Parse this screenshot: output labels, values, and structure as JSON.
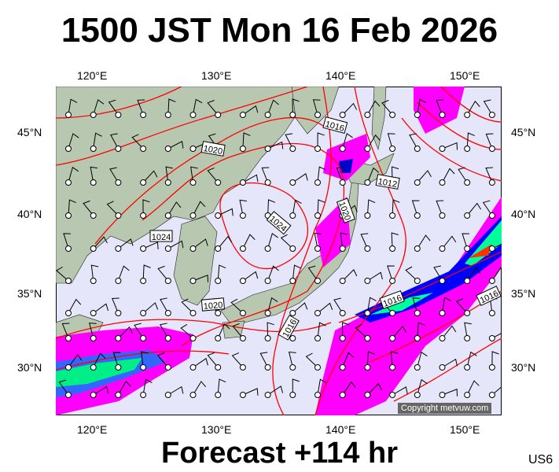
{
  "title": "1500 JST Mon 16 Feb 2026",
  "subtitle": "Forecast +114 hr",
  "region_code": "US6",
  "copyright": "Copyright metvuw.com",
  "axes": {
    "lon_labels": [
      "120°E",
      "130°E",
      "140°E",
      "150°E"
    ],
    "lat_labels": [
      "45°N",
      "40°N",
      "35°N",
      "30°N"
    ]
  },
  "isobar_labels": [
    "1016",
    "1020",
    "1012",
    "1020",
    "1024",
    "1024",
    "1020",
    "1016",
    "1016",
    "1016"
  ],
  "colors": {
    "ocean": "#e6e6fa",
    "land": "#b8c8b0",
    "isobar": "#ff0000",
    "precip_light": "#ff00ff",
    "precip_mid": "#9933ff",
    "precip_heavy": "#0000ff",
    "precip_very": "#00ff99",
    "precip_extreme": "#ff3300"
  },
  "icons": [
    "wind-barb",
    "station-circle"
  ]
}
